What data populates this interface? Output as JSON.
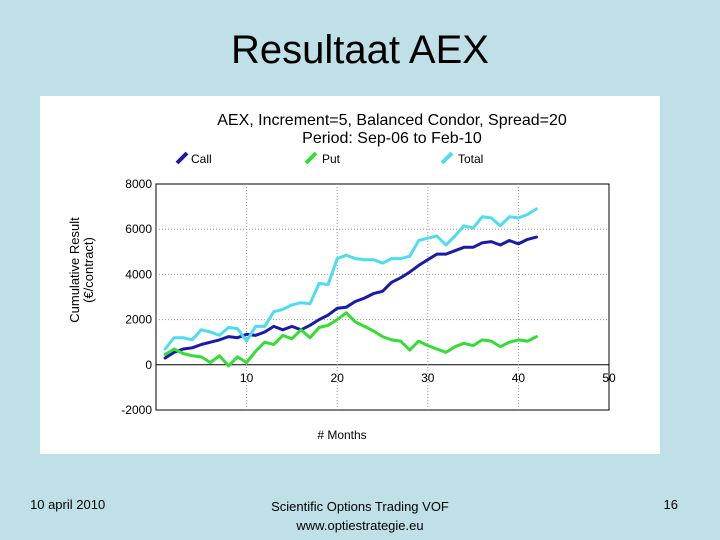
{
  "slide": {
    "title": "Resultaat AEX",
    "footer_date": "10 april 2010",
    "footer_company": "Scientific Options Trading VOF",
    "footer_url": "www.optiestrategie.eu",
    "page_number": "16"
  },
  "chart_data": {
    "type": "line",
    "title": "AEX, Increment=5,  Balanced Condor, Spread=20",
    "subtitle": "Period: Sep-06 to Feb-10",
    "xlabel": "# Months",
    "ylabel": "Cumulative Result",
    "ylabel_unit": "(€/contract)",
    "xlim": [
      0,
      50
    ],
    "ylim": [
      -2000,
      8000
    ],
    "x_ticks": [
      10,
      20,
      30,
      40,
      50
    ],
    "y_ticks": [
      -2000,
      0,
      2000,
      4000,
      6000,
      8000
    ],
    "x_tick_labels": [
      "10",
      "20",
      "30",
      "40",
      "50"
    ],
    "y_tick_labels": [
      "-2000",
      "0",
      "2000",
      "4000",
      "6000",
      "8000"
    ],
    "grid": true,
    "legend_position": "top",
    "colors": {
      "Call": "#1a1aa8",
      "Put": "#33dd33",
      "Total": "#4ddcf0"
    },
    "series": [
      {
        "name": "Call",
        "x": [
          1,
          2,
          3,
          4,
          5,
          6,
          7,
          8,
          9,
          10,
          11,
          12,
          13,
          14,
          15,
          16,
          17,
          18,
          19,
          20,
          21,
          22,
          23,
          24,
          25,
          26,
          27,
          28,
          29,
          30,
          31,
          32,
          33,
          34,
          35,
          36,
          37,
          38,
          39,
          40,
          41,
          42
        ],
        "values": [
          300,
          550,
          700,
          750,
          900,
          1000,
          1100,
          1250,
          1200,
          1350,
          1300,
          1450,
          1700,
          1550,
          1700,
          1550,
          1750,
          2000,
          2200,
          2500,
          2550,
          2800,
          2950,
          3150,
          3250,
          3650,
          3850,
          4100,
          4400,
          4650,
          4900,
          4900,
          5050,
          5200,
          5200,
          5400,
          5450,
          5300,
          5500,
          5350,
          5550,
          5650
        ]
      },
      {
        "name": "Put",
        "x": [
          1,
          2,
          3,
          4,
          5,
          6,
          7,
          8,
          9,
          10,
          11,
          12,
          13,
          14,
          15,
          16,
          17,
          18,
          19,
          20,
          21,
          22,
          23,
          24,
          25,
          26,
          27,
          28,
          29,
          30,
          31,
          32,
          33,
          34,
          35,
          36,
          37,
          38,
          39,
          40,
          41,
          42
        ],
        "values": [
          450,
          700,
          500,
          400,
          350,
          100,
          400,
          -50,
          350,
          100,
          600,
          1000,
          900,
          1300,
          1150,
          1550,
          1200,
          1650,
          1750,
          2000,
          2300,
          1900,
          1700,
          1500,
          1250,
          1100,
          1050,
          650,
          1050,
          850,
          700,
          550,
          800,
          950,
          850,
          1100,
          1050,
          800,
          1000,
          1100,
          1050,
          1250
        ]
      },
      {
        "name": "Total",
        "x": [
          1,
          2,
          3,
          4,
          5,
          6,
          7,
          8,
          9,
          10,
          11,
          12,
          13,
          14,
          15,
          16,
          17,
          18,
          19,
          20,
          21,
          22,
          23,
          24,
          25,
          26,
          27,
          28,
          29,
          30,
          31,
          32,
          33,
          34,
          35,
          36,
          37,
          38,
          39,
          40,
          41,
          42
        ],
        "values": [
          700,
          1200,
          1200,
          1100,
          1550,
          1450,
          1300,
          1650,
          1600,
          1050,
          1700,
          1700,
          2350,
          2450,
          2650,
          2750,
          2700,
          3600,
          3550,
          4700,
          4850,
          4700,
          4650,
          4650,
          4500,
          4700,
          4700,
          4800,
          5500,
          5600,
          5700,
          5300,
          5700,
          6150,
          6050,
          6550,
          6500,
          6150,
          6550,
          6500,
          6650,
          6900
        ]
      }
    ]
  }
}
